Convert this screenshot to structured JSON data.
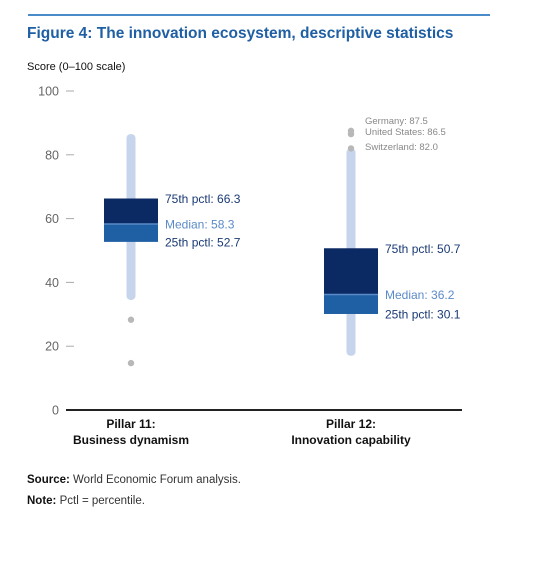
{
  "figure": {
    "title": "Figure 4: The innovation ecosystem, descriptive statistics",
    "unit_label": "Score (0–100 scale)",
    "source_label": "Source:",
    "source_text": "World Economic Forum analysis.",
    "note_label": "Note:",
    "note_text": "Pctl = percentile."
  },
  "colors": {
    "title": "#1f5fa3",
    "rule": "#4a8cc9",
    "box_upper": "#0b2a63",
    "box_lower": "#1f5fa3",
    "whisker": "#c6d5ec",
    "outlier": "#b8b8b8",
    "label_dark": "#1a3a75",
    "label_light": "#5b8ac8",
    "country_label": "#888888"
  },
  "chart_data": {
    "type": "boxplot",
    "ylabel": "Score (0–100 scale)",
    "ylim": [
      0,
      100
    ],
    "yticks": [
      0,
      20,
      40,
      60,
      80,
      100
    ],
    "categories": [
      {
        "line1": "Pillar 11:",
        "line2": "Business dynamism"
      },
      {
        "line1": "Pillar 12:",
        "line2": "Innovation capability"
      }
    ],
    "boxes": [
      {
        "whisker_low": 34.5,
        "q1": 52.7,
        "median": 58.3,
        "q3": 66.3,
        "whisker_high": 86.5,
        "q3_label": "75th pctl: 66.3",
        "median_label": "Median: 58.3",
        "q1_label": "25th pctl: 52.7",
        "outliers": [
          {
            "value": 28.3,
            "label": ""
          },
          {
            "value": 14.7,
            "label": ""
          }
        ]
      },
      {
        "whisker_low": 17.0,
        "q1": 30.1,
        "median": 36.2,
        "q3": 50.7,
        "whisker_high": 82.0,
        "q3_label": "75th pctl: 50.7",
        "median_label": "Median: 36.2",
        "q1_label": "25th pctl: 30.1",
        "outliers": [
          {
            "value": 87.5,
            "label": "Germany: 87.5"
          },
          {
            "value": 86.5,
            "label": "United States: 86.5"
          },
          {
            "value": 82.0,
            "label": "Switzerland: 82.0"
          }
        ]
      }
    ]
  }
}
